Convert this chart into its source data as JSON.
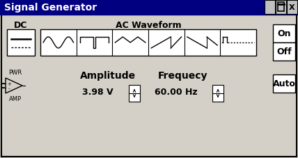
{
  "title": "Signal Generator",
  "bg_color": "#d4d0c8",
  "titlebar_color": "#000080",
  "titlebar_text_color": "#ffffff",
  "border_color": "#000000",
  "dc_label": "DC",
  "ac_label": "AC Waveform",
  "amplitude_label": "Amplitude",
  "amplitude_value": "3.98 V",
  "frequency_label": "Frequecy",
  "frequency_value": "60.00 Hz",
  "pwr_label": "PWR",
  "amp_label": "AMP",
  "on_label": "On",
  "off_label": "Off",
  "auto_label": "Auto",
  "fig_w": 4.28,
  "fig_h": 2.28,
  "dpi": 100
}
